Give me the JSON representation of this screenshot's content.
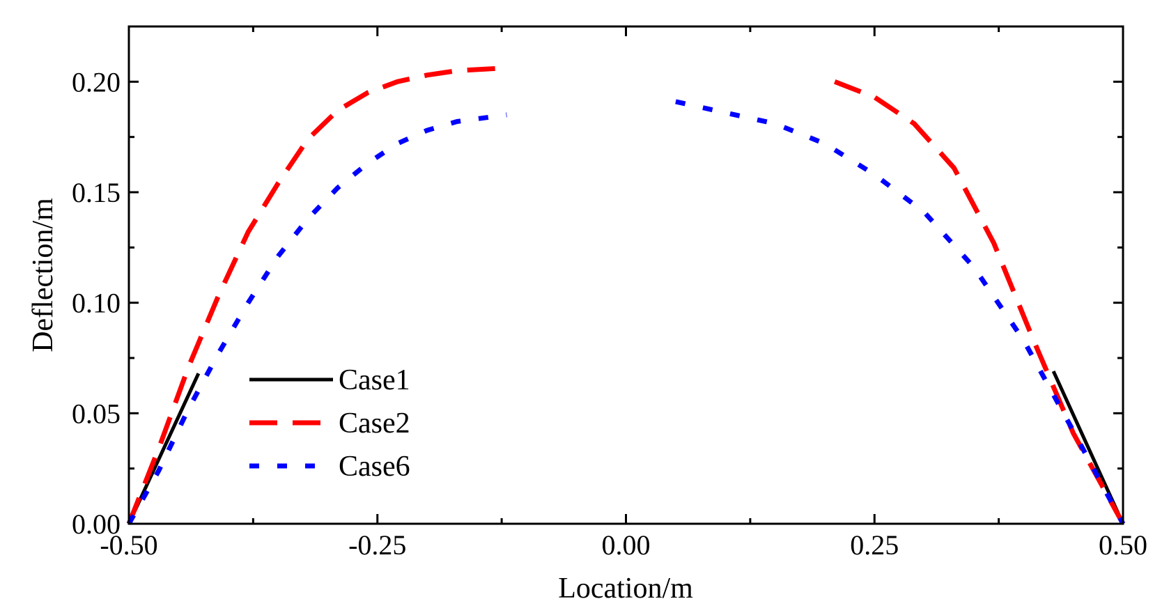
{
  "chart_data": {
    "type": "line",
    "title": "",
    "xlabel": "Location/m",
    "ylabel": "Deflection/m",
    "xlim": [
      -0.5,
      0.5
    ],
    "ylim": [
      0.0,
      0.225
    ],
    "xticks": [
      -0.5,
      -0.25,
      0.0,
      0.25,
      0.5
    ],
    "xtick_labels": [
      "-0.50",
      "-0.25",
      "0.00",
      "0.25",
      "0.50"
    ],
    "yticks": [
      0.0,
      0.05,
      0.1,
      0.15,
      0.2
    ],
    "ytick_labels": [
      "0.00",
      "0.05",
      "0.10",
      "0.15",
      "0.20"
    ],
    "grid": false,
    "legend_position": "lower-left",
    "series": [
      {
        "name": "Case1",
        "label": "Case1",
        "color": "#000000",
        "style": "solid",
        "segments": [
          {
            "x": [
              -0.5,
              -0.43
            ],
            "y": [
              0.0,
              0.068
            ]
          },
          {
            "x": [
              0.43,
              0.5
            ],
            "y": [
              0.069,
              0.0
            ]
          }
        ]
      },
      {
        "name": "Case2",
        "label": "Case2",
        "color": "#ff0000",
        "style": "dashed",
        "segments": [
          {
            "x": [
              -0.5,
              -0.47,
              -0.44,
              -0.41,
              -0.38,
              -0.35,
              -0.32,
              -0.29,
              -0.26,
              -0.23,
              -0.2,
              -0.17,
              -0.13
            ],
            "y": [
              0.0,
              0.034,
              0.071,
              0.103,
              0.132,
              0.154,
              0.174,
              0.187,
              0.195,
              0.2,
              0.203,
              0.205,
              0.206
            ]
          },
          {
            "x": [
              0.21,
              0.25,
              0.29,
              0.33,
              0.37,
              0.41,
              0.45,
              0.5
            ],
            "y": [
              0.2,
              0.193,
              0.181,
              0.161,
              0.127,
              0.083,
              0.041,
              0.0
            ]
          }
        ]
      },
      {
        "name": "Case6",
        "label": "Case6",
        "color": "#0000ff",
        "style": "dotted",
        "segments": [
          {
            "x": [
              -0.5,
              -0.47,
              -0.44,
              -0.41,
              -0.38,
              -0.35,
              -0.32,
              -0.29,
              -0.26,
              -0.23,
              -0.2,
              -0.17,
              -0.12
            ],
            "y": [
              0.0,
              0.024,
              0.052,
              0.077,
              0.1,
              0.121,
              0.138,
              0.152,
              0.163,
              0.172,
              0.178,
              0.182,
              0.185
            ]
          },
          {
            "x": [
              0.05,
              0.1,
              0.15,
              0.2,
              0.25,
              0.3,
              0.35,
              0.4,
              0.45,
              0.5
            ],
            "y": [
              0.191,
              0.186,
              0.181,
              0.172,
              0.158,
              0.141,
              0.116,
              0.083,
              0.042,
              0.0
            ]
          }
        ]
      }
    ]
  }
}
